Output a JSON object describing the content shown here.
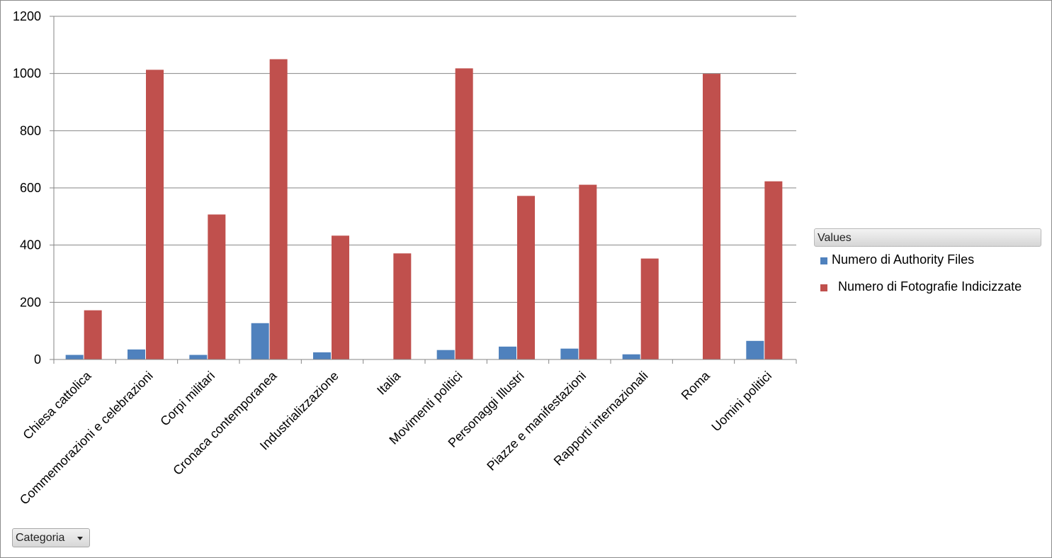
{
  "chart_data": {
    "type": "bar",
    "categories": [
      "Chiesa cattolica",
      "Commemorazioni e celebrazioni",
      "Corpi militari",
      "Cronaca contemporanea",
      "Industrializzazione",
      "Italia",
      "Movimenti politici",
      "Personaggi Illustri",
      "Piazze e manifestazioni",
      "Rapporti internazionali",
      "Roma",
      "Uomini politici"
    ],
    "series": [
      {
        "name": "Numero di Authority Files",
        "color": "#4f81bd",
        "values": [
          16,
          35,
          16,
          127,
          25,
          0,
          33,
          45,
          38,
          18,
          0,
          65
        ]
      },
      {
        "name": "Numero di Fotografie Indicizzate",
        "color": "#c0504d",
        "values": [
          172,
          1013,
          507,
          1050,
          433,
          371,
          1018,
          572,
          611,
          353,
          999,
          623
        ]
      }
    ],
    "ylim": [
      0,
      1200
    ],
    "yticks": [
      "0",
      "200",
      "400",
      "600",
      "800",
      "1000",
      "1200"
    ],
    "grid": true,
    "legend_position": "right",
    "legend_title": "Values"
  },
  "filter_button": {
    "label": "Categoria"
  }
}
